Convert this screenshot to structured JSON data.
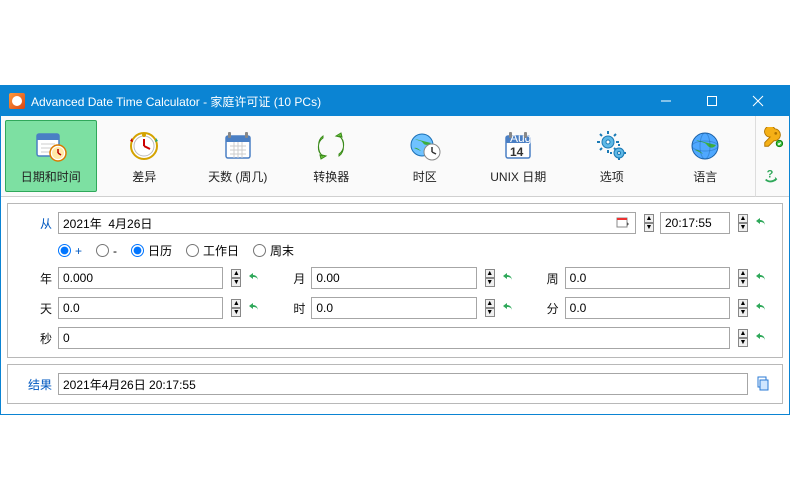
{
  "window": {
    "title": "Advanced Date Time Calculator - 家庭许可证  (10 PCs)"
  },
  "toolbar": {
    "items": [
      {
        "label": "日期和时间",
        "icon": "calendar-clock",
        "active": true
      },
      {
        "label": "差异",
        "icon": "clock-diff"
      },
      {
        "label": "天数 (周几)",
        "icon": "calendar-days"
      },
      {
        "label": "转换器",
        "icon": "converter"
      },
      {
        "label": "时区",
        "icon": "globe-clock"
      },
      {
        "label": "UNIX 日期",
        "icon": "unix-date"
      },
      {
        "label": "选项",
        "icon": "gears"
      },
      {
        "label": "语言",
        "icon": "globe"
      }
    ]
  },
  "form": {
    "from_label": "从",
    "from_date": "2021年  4月26日",
    "from_time": "20:17:55",
    "radios": {
      "plus": "+",
      "minus": "-",
      "calendar": "日历",
      "workday": "工作日",
      "weekend": "周末",
      "sign_selected": "plus",
      "mode_selected": "calendar"
    },
    "fields": {
      "year_label": "年",
      "year_value": "0.000",
      "month_label": "月",
      "month_value": "0.00",
      "week_label": "周",
      "week_value": "0.0",
      "day_label": "天",
      "day_value": "0.0",
      "hour_label": "时",
      "hour_value": "0.0",
      "minute_label": "分",
      "minute_value": "0.0",
      "second_label": "秒",
      "second_value": "0"
    }
  },
  "result": {
    "label": "结果",
    "value": "2021年4月26日 20:17:55"
  },
  "colors": {
    "titlebar": "#0b84d3",
    "active_tab": "#7de0a2",
    "link_blue": "#0058c0",
    "undo_green": "#2fa85a"
  }
}
